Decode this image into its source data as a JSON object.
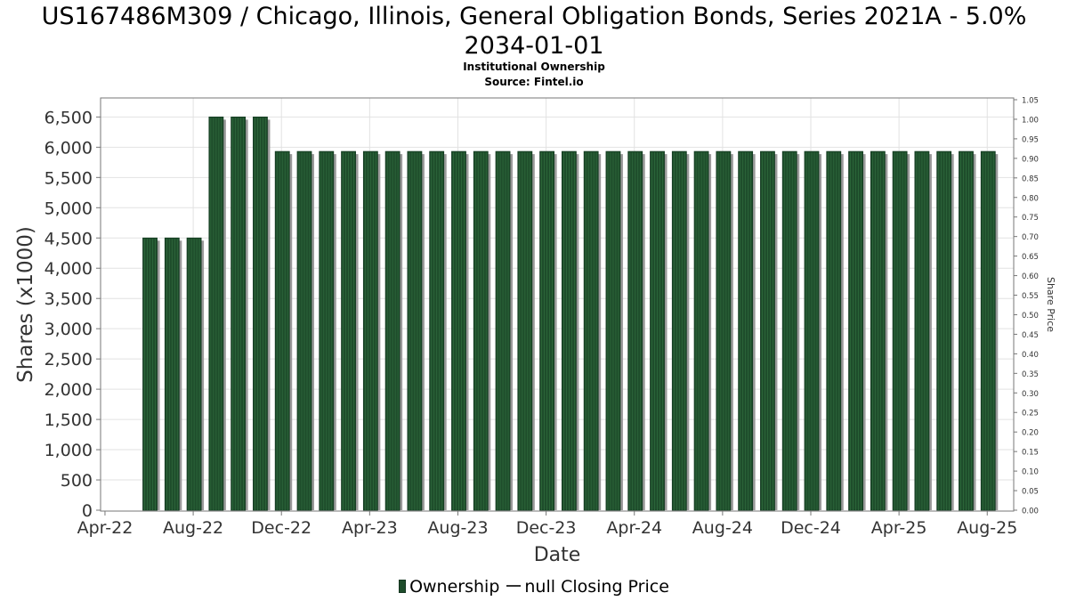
{
  "chart_data": {
    "type": "bar",
    "title_line1": "US167486M309 / Chicago, Illinois, General Obligation Bonds, Series 2021A - 5.0%",
    "title_line2": "2034-01-01",
    "subtitle1": "Institutional Ownership",
    "subtitle2": "Source: Fintel.io",
    "xlabel": "Date",
    "ylabel": "Shares (x1000)",
    "y2label": "Share Price",
    "x_ticks": [
      "Apr-22",
      "Aug-22",
      "Dec-22",
      "Apr-23",
      "Aug-23",
      "Dec-23",
      "Apr-24",
      "Aug-24",
      "Dec-24",
      "Apr-25",
      "Aug-25"
    ],
    "y_ticks": [
      "0",
      "500",
      "1,000",
      "1,500",
      "2,000",
      "2,500",
      "3,000",
      "3,500",
      "4,000",
      "4,500",
      "5,000",
      "5,500",
      "6,000",
      "6,500"
    ],
    "y2_ticks": [
      "0.00",
      "0.05",
      "0.10",
      "0.15",
      "0.20",
      "0.25",
      "0.30",
      "0.35",
      "0.40",
      "0.45",
      "0.50",
      "0.55",
      "0.60",
      "0.65",
      "0.70",
      "0.75",
      "0.80",
      "0.85",
      "0.90",
      "0.95",
      "1.00",
      "1.05"
    ],
    "ylim": [
      0,
      6800
    ],
    "y2lim": [
      0,
      1.05
    ],
    "xlim_months": [
      -0.2,
      41.2
    ],
    "grid": true,
    "legend_position": "bottom",
    "series": [
      {
        "name": "Ownership",
        "color": "#1e4d2b",
        "x_months": [
          2,
          3,
          4,
          5,
          6,
          7,
          8,
          9,
          10,
          11,
          12,
          13,
          14,
          15,
          16,
          17,
          18,
          19,
          20,
          21,
          22,
          23,
          24,
          25,
          26,
          27,
          28,
          29,
          30,
          31,
          32,
          33,
          34,
          35,
          36,
          37,
          38,
          39,
          40
        ],
        "values": [
          4500,
          4500,
          4500,
          6500,
          6500,
          6500,
          5930,
          5930,
          5930,
          5930,
          5930,
          5930,
          5930,
          5930,
          5930,
          5930,
          5930,
          5930,
          5930,
          5930,
          5930,
          5930,
          5930,
          5930,
          5930,
          5930,
          5930,
          5930,
          5930,
          5930,
          5930,
          5930,
          5930,
          5930,
          5930,
          5930,
          5930,
          5930,
          5930
        ]
      },
      {
        "name": "null Closing Price",
        "color": "#333333",
        "values": []
      }
    ]
  }
}
